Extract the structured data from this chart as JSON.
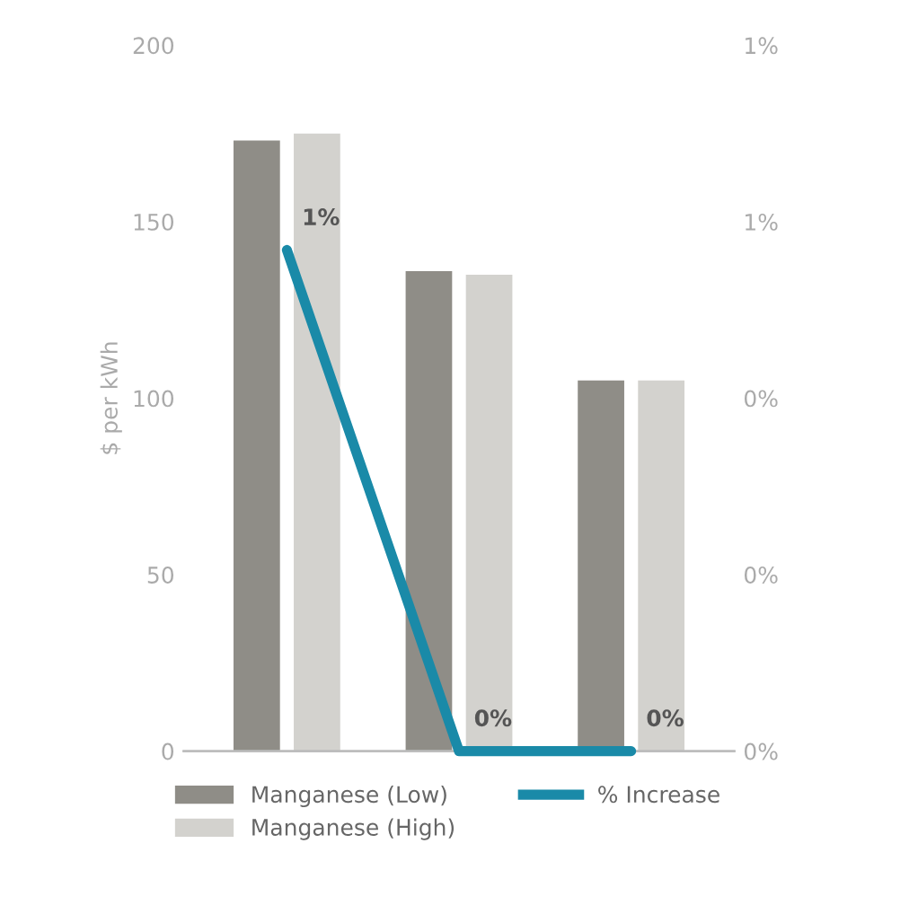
{
  "chart_data": {
    "type": "bar",
    "ylabel": "$ per kWh",
    "categories": [
      null,
      null,
      null
    ],
    "series": [
      {
        "name": "Manganese (Low)",
        "color": "#8f8d87",
        "values": [
          173,
          136,
          105
        ]
      },
      {
        "name": "Manganese (High)",
        "color": "#d3d2ce",
        "values": [
          175,
          135,
          105
        ]
      },
      {
        "name": "% Increase",
        "type": "line",
        "axis": "y2",
        "color": "#1a8aa8",
        "values": [
          0.71,
          0,
          0
        ],
        "value_labels": [
          "1%",
          "0%",
          "0%"
        ]
      }
    ],
    "ylim": [
      0,
      200
    ],
    "yticks": [
      0,
      50,
      100,
      150,
      200
    ],
    "y2lim": [
      0,
      1
    ],
    "y2ticks": [
      {
        "value": 0,
        "label": "0%"
      },
      {
        "value": 0.25,
        "label": "0%"
      },
      {
        "value": 0.5,
        "label": "0%"
      },
      {
        "value": 0.75,
        "label": "1%"
      },
      {
        "value": 1,
        "label": "1%"
      }
    ],
    "legend": "bottom",
    "grid": false
  }
}
